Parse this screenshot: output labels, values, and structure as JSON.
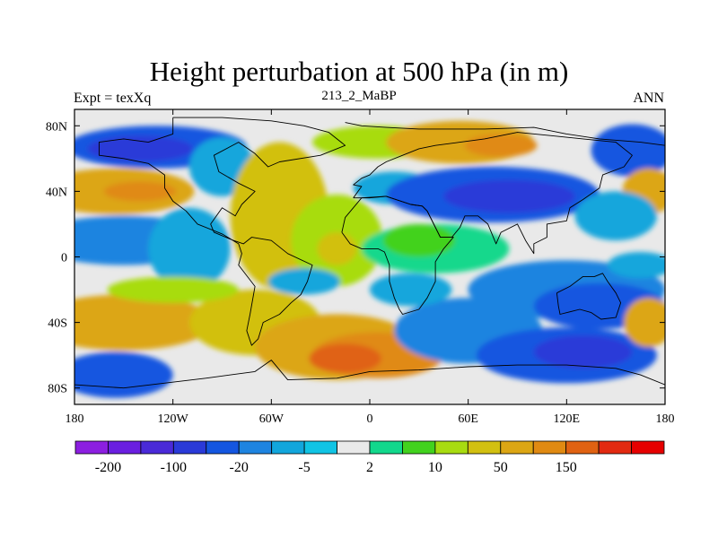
{
  "title": "Height perturbation at 500 hPa (in m)",
  "subtitle": {
    "left": "Expt = texXq",
    "center": "213_2_MaBP",
    "right": "ANN"
  },
  "chart_data": {
    "type": "heatmap",
    "title": "Height perturbation at 500 hPa (in m)",
    "variable": "500 hPa geopotential height perturbation",
    "units": "m",
    "xlabel": "",
    "ylabel": "",
    "xlim": [
      -180,
      180
    ],
    "ylim": [
      -90,
      90
    ],
    "x_ticks": [
      {
        "value": -180,
        "label": "180"
      },
      {
        "value": -120,
        "label": "120W"
      },
      {
        "value": -60,
        "label": "60W"
      },
      {
        "value": 0,
        "label": "0"
      },
      {
        "value": 60,
        "label": "60E"
      },
      {
        "value": 120,
        "label": "120E"
      },
      {
        "value": 180,
        "label": "180"
      }
    ],
    "y_ticks": [
      {
        "value": 80,
        "label": "80N"
      },
      {
        "value": 40,
        "label": "40N"
      },
      {
        "value": 0,
        "label": "0"
      },
      {
        "value": -40,
        "label": "40S"
      },
      {
        "value": -80,
        "label": "80S"
      }
    ],
    "colorbar": {
      "colors": [
        "#8c1fe0",
        "#6a1fe0",
        "#4a2ad8",
        "#2a3ad8",
        "#1456e0",
        "#1e84e0",
        "#12a6dc",
        "#10c4e4",
        "#e9e9e9",
        "#12d88c",
        "#42d21e",
        "#a8dc10",
        "#d2c010",
        "#dca614",
        "#e08a12",
        "#e06212",
        "#e22a10",
        "#e60000"
      ],
      "labels": [
        {
          "index": 1,
          "text": "-200"
        },
        {
          "index": 3,
          "text": "-100"
        },
        {
          "index": 5,
          "text": "-20"
        },
        {
          "index": 7,
          "text": "-5"
        },
        {
          "index": 9,
          "text": "2"
        },
        {
          "index": 11,
          "text": "10"
        },
        {
          "index": 13,
          "text": "50"
        },
        {
          "index": 15,
          "text": "150"
        }
      ]
    },
    "background_color": "#e9e9e9",
    "field_blobs": [
      {
        "lon": -130,
        "lat": 67,
        "rx": 55,
        "ry": 13,
        "color": "#1456e0"
      },
      {
        "lon": -140,
        "lat": 66,
        "rx": 32,
        "ry": 8,
        "color": "#2a3ad8"
      },
      {
        "lon": -155,
        "lat": 40,
        "rx": 48,
        "ry": 14,
        "color": "#dca614"
      },
      {
        "lon": -140,
        "lat": 40,
        "rx": 22,
        "ry": 6,
        "color": "#e08a12"
      },
      {
        "lon": -150,
        "lat": 10,
        "rx": 55,
        "ry": 15,
        "color": "#1e84e0"
      },
      {
        "lon": -110,
        "lat": 5,
        "rx": 25,
        "ry": 25,
        "color": "#12a6dc"
      },
      {
        "lon": -90,
        "lat": 55,
        "rx": 20,
        "ry": 18,
        "color": "#12a6dc"
      },
      {
        "lon": -55,
        "lat": 25,
        "rx": 30,
        "ry": 45,
        "color": "#d2c010"
      },
      {
        "lon": -20,
        "lat": 10,
        "rx": 28,
        "ry": 28,
        "color": "#a8dc10"
      },
      {
        "lon": -20,
        "lat": 5,
        "rx": 12,
        "ry": 10,
        "color": "#d2c010"
      },
      {
        "lon": 5,
        "lat": 70,
        "rx": 40,
        "ry": 10,
        "color": "#a8dc10"
      },
      {
        "lon": 55,
        "lat": 70,
        "rx": 45,
        "ry": 13,
        "color": "#dca614"
      },
      {
        "lon": 80,
        "lat": 68,
        "rx": 22,
        "ry": 7,
        "color": "#e08a12"
      },
      {
        "lon": 15,
        "lat": 42,
        "rx": 25,
        "ry": 10,
        "color": "#12a6dc"
      },
      {
        "lon": 75,
        "lat": 38,
        "rx": 65,
        "ry": 17,
        "color": "#1456e0"
      },
      {
        "lon": 85,
        "lat": 37,
        "rx": 40,
        "ry": 10,
        "color": "#2a3ad8"
      },
      {
        "lon": 160,
        "lat": 65,
        "rx": 25,
        "ry": 16,
        "color": "#1456e0"
      },
      {
        "lon": 170,
        "lat": 40,
        "rx": 16,
        "ry": 14,
        "color": "#dca614"
      },
      {
        "lon": 150,
        "lat": 25,
        "rx": 25,
        "ry": 15,
        "color": "#12a6dc"
      },
      {
        "lon": 40,
        "lat": 5,
        "rx": 45,
        "ry": 15,
        "color": "#12d88c"
      },
      {
        "lon": 30,
        "lat": 10,
        "rx": 22,
        "ry": 10,
        "color": "#42d21e"
      },
      {
        "lon": 120,
        "lat": -20,
        "rx": 60,
        "ry": 18,
        "color": "#1e84e0"
      },
      {
        "lon": 140,
        "lat": -30,
        "rx": 40,
        "ry": 14,
        "color": "#1456e0"
      },
      {
        "lon": 165,
        "lat": -5,
        "rx": 20,
        "ry": 8,
        "color": "#12a6dc"
      },
      {
        "lon": -150,
        "lat": -40,
        "rx": 55,
        "ry": 17,
        "color": "#dca614"
      },
      {
        "lon": -70,
        "lat": -40,
        "rx": 40,
        "ry": 20,
        "color": "#d2c010"
      },
      {
        "lon": -20,
        "lat": -55,
        "rx": 50,
        "ry": 20,
        "color": "#dca614"
      },
      {
        "lon": 5,
        "lat": -60,
        "rx": 40,
        "ry": 14,
        "color": "#e08a12"
      },
      {
        "lon": -15,
        "lat": -62,
        "rx": 22,
        "ry": 9,
        "color": "#e06212"
      },
      {
        "lon": 60,
        "lat": -45,
        "rx": 45,
        "ry": 20,
        "color": "#1e84e0"
      },
      {
        "lon": 120,
        "lat": -60,
        "rx": 55,
        "ry": 17,
        "color": "#1456e0"
      },
      {
        "lon": 130,
        "lat": -58,
        "rx": 30,
        "ry": 10,
        "color": "#2a3ad8"
      },
      {
        "lon": -155,
        "lat": -72,
        "rx": 35,
        "ry": 14,
        "color": "#1456e0"
      },
      {
        "lon": 170,
        "lat": -40,
        "rx": 15,
        "ry": 15,
        "color": "#dca614"
      },
      {
        "lon": -40,
        "lat": -15,
        "rx": 22,
        "ry": 8,
        "color": "#12a6dc"
      },
      {
        "lon": 25,
        "lat": -20,
        "rx": 25,
        "ry": 10,
        "color": "#12a6dc"
      },
      {
        "lon": -120,
        "lat": -20,
        "rx": 40,
        "ry": 8,
        "color": "#a8dc10"
      }
    ],
    "coastlines": [
      [
        [
          -120,
          85
        ],
        [
          -90,
          85
        ],
        [
          -60,
          83
        ],
        [
          -40,
          80
        ],
        [
          -25,
          76
        ],
        [
          -15,
          68
        ],
        [
          -30,
          62
        ],
        [
          -55,
          58
        ],
        [
          -62,
          55
        ],
        [
          -70,
          63
        ],
        [
          -80,
          70
        ],
        [
          -95,
          62
        ],
        [
          -92,
          52
        ],
        [
          -80,
          45
        ],
        [
          -70,
          40
        ],
        [
          -78,
          32
        ],
        [
          -82,
          25
        ],
        [
          -90,
          30
        ],
        [
          -97,
          20
        ],
        [
          -95,
          15
        ],
        [
          -83,
          10
        ],
        [
          -77,
          8
        ],
        [
          -72,
          12
        ],
        [
          -60,
          10
        ],
        [
          -50,
          2
        ],
        [
          -35,
          -5
        ],
        [
          -38,
          -15
        ],
        [
          -42,
          -23
        ],
        [
          -48,
          -28
        ],
        [
          -55,
          -35
        ],
        [
          -65,
          -40
        ],
        [
          -68,
          -50
        ],
        [
          -72,
          -54
        ],
        [
          -75,
          -45
        ],
        [
          -73,
          -35
        ],
        [
          -70,
          -18
        ],
        [
          -80,
          -5
        ],
        [
          -78,
          2
        ],
        [
          -80,
          8
        ],
        [
          -90,
          14
        ],
        [
          -105,
          20
        ],
        [
          -112,
          28
        ],
        [
          -120,
          34
        ],
        [
          -125,
          42
        ],
        [
          -125,
          50
        ],
        [
          -135,
          57
        ],
        [
          -150,
          60
        ],
        [
          -165,
          62
        ],
        [
          -165,
          70
        ],
        [
          -150,
          72
        ],
        [
          -135,
          70
        ],
        [
          -120,
          75
        ],
        [
          -120,
          85
        ]
      ],
      [
        [
          -15,
          82
        ],
        [
          -5,
          80
        ],
        [
          10,
          79
        ],
        [
          30,
          78
        ],
        [
          50,
          78
        ],
        [
          70,
          78
        ],
        [
          100,
          79
        ],
        [
          120,
          75
        ],
        [
          140,
          72
        ],
        [
          165,
          70
        ],
        [
          180,
          68
        ]
      ],
      [
        [
          -10,
          36
        ],
        [
          -5,
          43
        ],
        [
          -10,
          44
        ],
        [
          -5,
          48
        ],
        [
          0,
          50
        ],
        [
          5,
          55
        ],
        [
          10,
          58
        ],
        [
          20,
          62
        ],
        [
          30,
          66
        ],
        [
          40,
          68
        ],
        [
          55,
          70
        ],
        [
          70,
          72
        ],
        [
          90,
          76
        ],
        [
          110,
          74
        ],
        [
          130,
          72
        ],
        [
          150,
          70
        ],
        [
          160,
          62
        ],
        [
          155,
          55
        ],
        [
          142,
          50
        ],
        [
          140,
          42
        ],
        [
          130,
          35
        ],
        [
          122,
          30
        ],
        [
          120,
          22
        ],
        [
          108,
          20
        ],
        [
          108,
          12
        ],
        [
          100,
          8
        ],
        [
          100,
          2
        ],
        [
          95,
          10
        ],
        [
          90,
          20
        ],
        [
          80,
          15
        ],
        [
          77,
          8
        ],
        [
          72,
          20
        ],
        [
          66,
          25
        ],
        [
          58,
          25
        ],
        [
          55,
          18
        ],
        [
          50,
          12
        ],
        [
          43,
          12
        ],
        [
          35,
          28
        ],
        [
          32,
          31
        ],
        [
          25,
          32
        ],
        [
          10,
          37
        ],
        [
          0,
          36
        ],
        [
          -10,
          36
        ]
      ],
      [
        [
          -17,
          15
        ],
        [
          -15,
          24
        ],
        [
          -10,
          30
        ],
        [
          -5,
          36
        ],
        [
          10,
          37
        ],
        [
          25,
          32
        ],
        [
          32,
          31
        ],
        [
          35,
          28
        ],
        [
          43,
          12
        ],
        [
          51,
          12
        ],
        [
          45,
          5
        ],
        [
          40,
          -3
        ],
        [
          40,
          -15
        ],
        [
          35,
          -25
        ],
        [
          30,
          -32
        ],
        [
          20,
          -35
        ],
        [
          18,
          -32
        ],
        [
          15,
          -25
        ],
        [
          12,
          -15
        ],
        [
          12,
          -5
        ],
        [
          9,
          3
        ],
        [
          5,
          5
        ],
        [
          -5,
          5
        ],
        [
          -12,
          8
        ],
        [
          -17,
          15
        ]
      ],
      [
        [
          114,
          -22
        ],
        [
          122,
          -18
        ],
        [
          130,
          -12
        ],
        [
          137,
          -12
        ],
        [
          142,
          -10
        ],
        [
          145,
          -15
        ],
        [
          150,
          -22
        ],
        [
          153,
          -28
        ],
        [
          150,
          -37
        ],
        [
          141,
          -38
        ],
        [
          135,
          -34
        ],
        [
          128,
          -32
        ],
        [
          116,
          -35
        ],
        [
          115,
          -30
        ],
        [
          114,
          -22
        ]
      ],
      [
        [
          -180,
          -78
        ],
        [
          -150,
          -80
        ],
        [
          -100,
          -74
        ],
        [
          -70,
          -70
        ],
        [
          -60,
          -63
        ],
        [
          -50,
          -75
        ],
        [
          -20,
          -74
        ],
        [
          0,
          -70
        ],
        [
          30,
          -69
        ],
        [
          60,
          -67
        ],
        [
          90,
          -66
        ],
        [
          120,
          -66
        ],
        [
          150,
          -68
        ],
        [
          165,
          -72
        ],
        [
          180,
          -78
        ]
      ]
    ]
  }
}
